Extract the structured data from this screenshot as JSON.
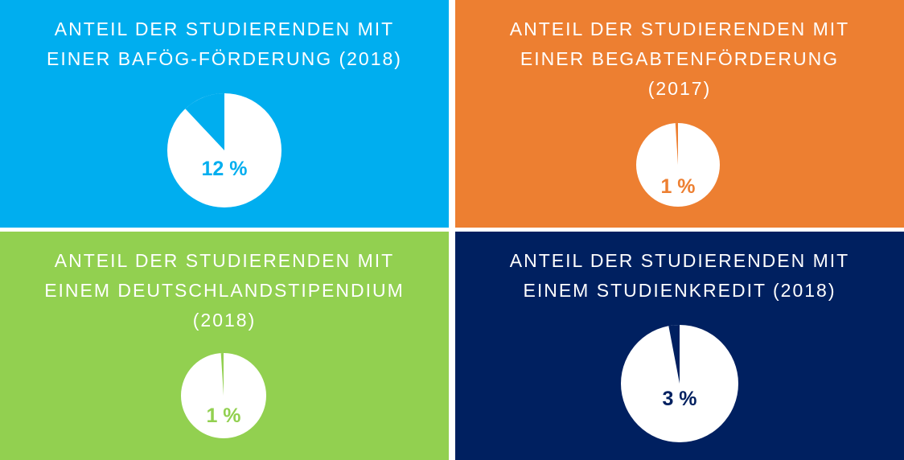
{
  "chart_data": [
    {
      "type": "pie",
      "title_lines": [
        "ANTEIL DER STUDIERENDEN MIT",
        "EINER BAFÖG-FÖRDERUNG (2018)"
      ],
      "values": [
        12,
        88
      ],
      "percent_label": "12 %",
      "background_color": "#00aeef",
      "pie_color": "#ffffff",
      "label_color": "#00aeef"
    },
    {
      "type": "pie",
      "title_lines": [
        "ANTEIL DER STUDIERENDEN MIT",
        "EINER BEGABTENFÖRDERUNG",
        "(2017)"
      ],
      "values": [
        1,
        99
      ],
      "percent_label": "1 %",
      "background_color": "#ed7f31",
      "pie_color": "#ffffff",
      "label_color": "#ed7f31"
    },
    {
      "type": "pie",
      "title_lines": [
        "ANTEIL DER STUDIERENDEN MIT",
        "EINEM DEUTSCHLANDSTIPENDIUM",
        "(2018)"
      ],
      "values": [
        1,
        99
      ],
      "percent_label": "1 %",
      "background_color": "#92d050",
      "pie_color": "#ffffff",
      "label_color": "#92d050"
    },
    {
      "type": "pie",
      "title_lines": [
        "ANTEIL DER STUDIERENDEN MIT",
        "EINEM STUDIENKREDIT (2018)"
      ],
      "values": [
        3,
        97
      ],
      "percent_label": "3 %",
      "background_color": "#002060",
      "pie_color": "#ffffff",
      "label_color": "#002060"
    }
  ]
}
